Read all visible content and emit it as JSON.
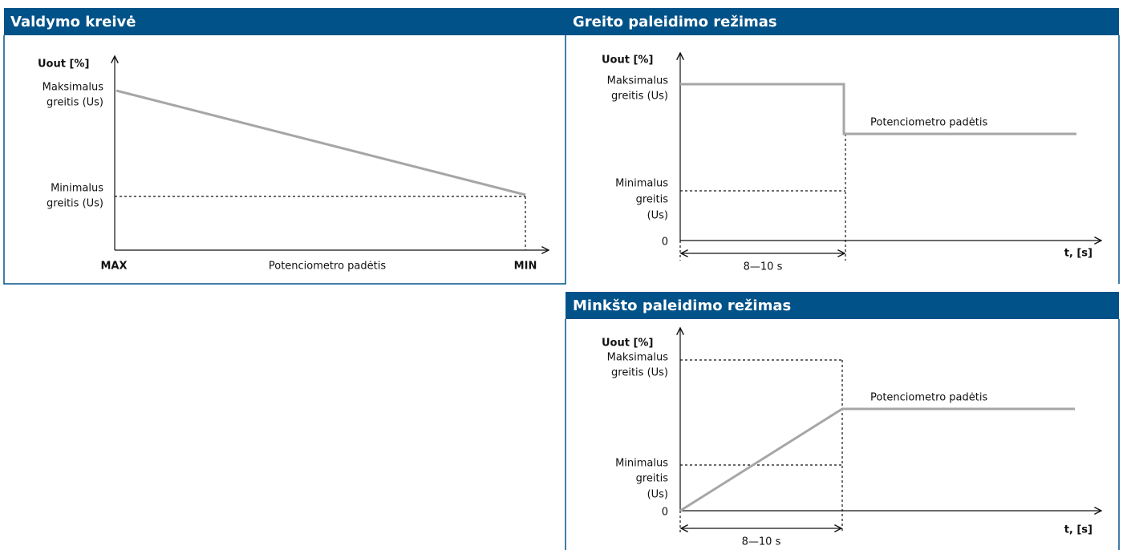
{
  "panels": [
    {
      "title": "Valdymo kreivė",
      "y_axis": "Uout [%]",
      "max_label": [
        "Maksimalus",
        "greitis (Us)"
      ],
      "min_label": [
        "Minimalus",
        "greitis (Us)"
      ],
      "x_start": "MAX",
      "x_axis": "Potenciometro padėtis",
      "x_end": "MIN"
    },
    {
      "title": "Greito paleidimo režimas",
      "y_axis": "Uout [%]",
      "max_label": [
        "Maksimalus",
        "greitis (Us)"
      ],
      "min_label": [
        "Minimalus",
        "greitis",
        "(Us)"
      ],
      "origin": "0",
      "curve_label": "Potenciometro padėtis",
      "duration": "8—10 s",
      "x_axis": "t, [s]"
    },
    {
      "title": "Minkšto paleidimo režimas",
      "y_axis": "Uout [%]",
      "max_label": [
        "Maksimalus",
        "greitis (Us)"
      ],
      "min_label": [
        "Minimalus",
        "greitis",
        "(Us)"
      ],
      "origin": "0",
      "curve_label": "Potenciometro padėtis",
      "duration": "8—10 s",
      "x_axis": "t, [s]"
    }
  ]
}
